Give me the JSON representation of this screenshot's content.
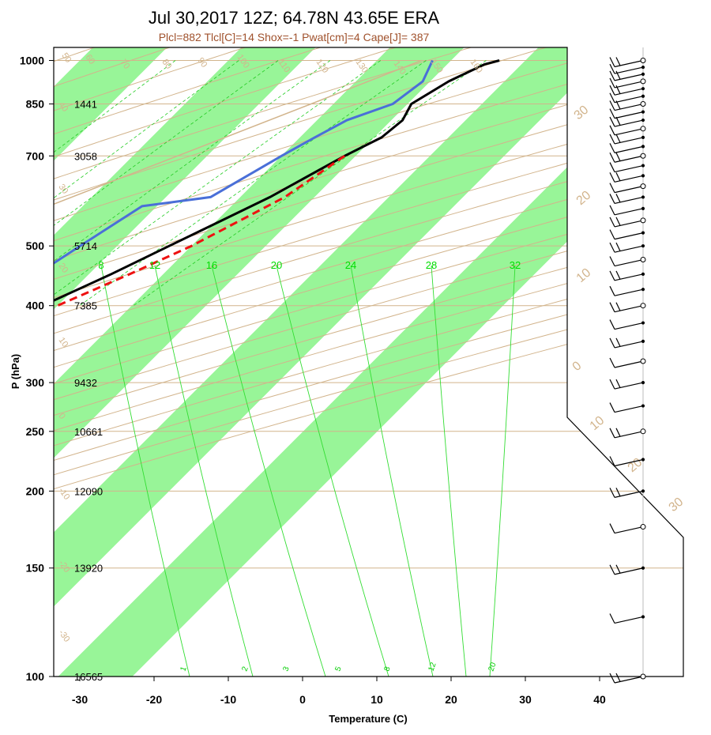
{
  "title": "Jul 30,2017 12Z; 64.78N 43.65E ERA",
  "subtitle": "Plcl=882 Tlcl[C]=14 Shox=-1 Pwat[cm]=4 Cape[J]= 387",
  "chart_data": {
    "type": "line",
    "subtype": "skew-T log-P sounding",
    "xlabel": "Temperature (C)",
    "ylabel": "P (hPa)",
    "x_ticks": [
      -30,
      -20,
      -10,
      0,
      10,
      20,
      30,
      40
    ],
    "pressure_ticks": [
      {
        "p": 100,
        "label": "100",
        "height": "16565"
      },
      {
        "p": 150,
        "label": "150",
        "height": "13920"
      },
      {
        "p": 200,
        "label": "200",
        "height": "12090"
      },
      {
        "p": 250,
        "label": "250",
        "height": "10661"
      },
      {
        "p": 300,
        "label": "300",
        "height": "9432"
      },
      {
        "p": 400,
        "label": "400",
        "height": "7385"
      },
      {
        "p": 500,
        "label": "500",
        "height": "5714"
      },
      {
        "p": 700,
        "label": "700",
        "height": "3058"
      },
      {
        "p": 850,
        "label": "850",
        "height": "1441"
      },
      {
        "p": 1000,
        "label": "1000",
        "height": ""
      }
    ],
    "mixing_ratio_top_labels": [
      "8",
      "12",
      "16",
      "20",
      "24",
      "28",
      "32"
    ],
    "mixing_ratio_bottom_labels": [
      "1",
      "2",
      "3",
      "5",
      "8",
      "12",
      "20"
    ],
    "dry_adiabat_labels": [
      "50",
      "60",
      "70",
      "80",
      "90",
      "100",
      "110",
      "120",
      "130",
      "140",
      "150",
      "160"
    ],
    "isotherm_left_labels": [
      "40",
      "30",
      "20",
      "10",
      "0",
      "-10",
      "-20",
      "-30"
    ],
    "wind_scale_labels": [
      "30",
      "20",
      "10",
      "0",
      "10",
      "20",
      "30"
    ],
    "series": [
      {
        "type": "temperature",
        "color": "#000000",
        "points": [
          [
            1000,
            26.5
          ],
          [
            985,
            25.0
          ],
          [
            925,
            22.5
          ],
          [
            850,
            20.5
          ],
          [
            800,
            21.5
          ],
          [
            750,
            21.0
          ],
          [
            700,
            18.5
          ],
          [
            600,
            14.0
          ],
          [
            500,
            7.0
          ],
          [
            450,
            3.0
          ],
          [
            400,
            -2.0
          ],
          [
            350,
            -7.0
          ],
          [
            300,
            -12.5
          ],
          [
            250,
            -19.5
          ],
          [
            220,
            -25.5
          ],
          [
            200,
            -31.0
          ],
          [
            150,
            -38.0
          ],
          [
            120,
            -43.0
          ],
          [
            100,
            -47.0
          ]
        ]
      },
      {
        "type": "dewpoint",
        "color": "#4a6fd8",
        "points": [
          [
            1000,
            17.5
          ],
          [
            925,
            19.0
          ],
          [
            850,
            18.0
          ],
          [
            800,
            14.0
          ],
          [
            750,
            12.0
          ],
          [
            700,
            10.0
          ],
          [
            600,
            6.0
          ],
          [
            580,
            -2.0
          ],
          [
            500,
            -5.0
          ],
          [
            450,
            -7.0
          ],
          [
            400,
            -9.5
          ],
          [
            350,
            -11.0
          ],
          [
            300,
            -14.0
          ],
          [
            250,
            -20.5
          ],
          [
            220,
            -25.5
          ],
          [
            200,
            -28.0
          ],
          [
            175,
            -38.0
          ],
          [
            150,
            -45.0
          ],
          [
            120,
            -58.0
          ],
          [
            100,
            -70.0
          ]
        ]
      },
      {
        "type": "parcel",
        "color": "#ee1111",
        "points": [
          [
            700,
            18.5
          ],
          [
            600,
            16.0
          ],
          [
            500,
            10.0
          ],
          [
            450,
            5.5
          ],
          [
            400,
            0.0
          ],
          [
            350,
            -6.5
          ]
        ]
      },
      {
        "type": "dewpoint-profile",
        "color": "#d2b48c",
        "points": [
          [
            1000,
            16.0
          ],
          [
            850,
            7.0
          ],
          [
            700,
            -4.0
          ],
          [
            500,
            -23.0
          ],
          [
            400,
            -36.0
          ],
          [
            300,
            -51.0
          ],
          [
            230,
            -65.0
          ]
        ]
      }
    ],
    "wind_barbs_hpa": [
      1000,
      975,
      950,
      925,
      900,
      875,
      850,
      825,
      800,
      775,
      750,
      725,
      700,
      675,
      650,
      625,
      600,
      575,
      550,
      525,
      500,
      475,
      450,
      425,
      400,
      375,
      350,
      325,
      300,
      275,
      250,
      225,
      200,
      175,
      150,
      125,
      100
    ]
  }
}
